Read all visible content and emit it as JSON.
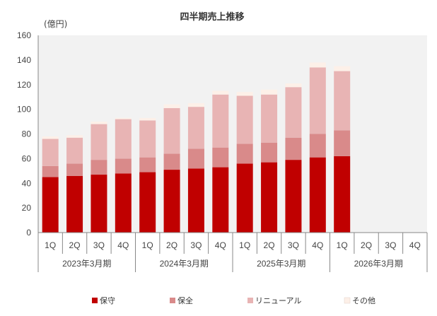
{
  "chart_data": {
    "type": "bar",
    "stacked": true,
    "title": "四半期売上推移",
    "unit_label": "(億円)",
    "ylim": [
      0,
      160
    ],
    "yticks": [
      0,
      20,
      40,
      60,
      80,
      100,
      120,
      140,
      160
    ],
    "categories": [
      "1Q",
      "2Q",
      "3Q",
      "4Q",
      "1Q",
      "2Q",
      "3Q",
      "4Q",
      "1Q",
      "2Q",
      "3Q",
      "4Q",
      "1Q",
      "2Q",
      "3Q",
      "4Q"
    ],
    "groups": [
      {
        "label": "2023年3月期",
        "span": 4
      },
      {
        "label": "2024年3月期",
        "span": 4
      },
      {
        "label": "2025年3月期",
        "span": 4
      },
      {
        "label": "2026年3月期",
        "span": 4
      }
    ],
    "series": [
      {
        "name": "保守",
        "color": "#c00000",
        "values": [
          45,
          46,
          47,
          48,
          49,
          51,
          52,
          53,
          56,
          57,
          59,
          61,
          62,
          null,
          null,
          null
        ]
      },
      {
        "name": "保全",
        "color": "#d98a8a",
        "values": [
          9,
          10,
          12,
          12,
          12,
          13,
          16,
          16,
          16,
          16,
          18,
          19,
          21,
          null,
          null,
          null
        ]
      },
      {
        "name": "リニューアル",
        "color": "#e8b4b4",
        "values": [
          22,
          21,
          29,
          32,
          30,
          37,
          34,
          43,
          39,
          39,
          41,
          54,
          48,
          null,
          null,
          null
        ]
      },
      {
        "name": "その他",
        "color": "#fdf0e8",
        "values": [
          2,
          2,
          2,
          1,
          2,
          3,
          3,
          3,
          3,
          4,
          3,
          4,
          4,
          null,
          null,
          null
        ]
      }
    ],
    "plot_background": "#f2f2f2",
    "legend_position": "bottom"
  }
}
